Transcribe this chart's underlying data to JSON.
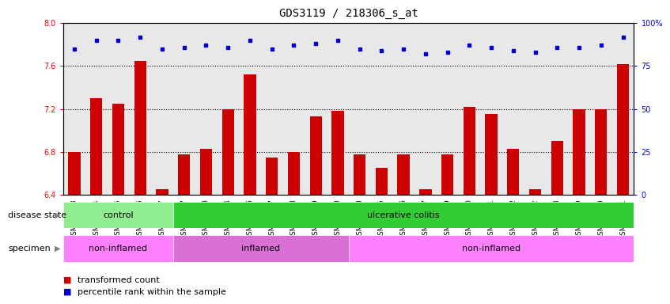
{
  "title": "GDS3119 / 218306_s_at",
  "samples": [
    "GSM240023",
    "GSM240024",
    "GSM240025",
    "GSM240026",
    "GSM240027",
    "GSM239617",
    "GSM239618",
    "GSM239714",
    "GSM239716",
    "GSM239717",
    "GSM239718",
    "GSM239719",
    "GSM239720",
    "GSM239723",
    "GSM239725",
    "GSM239726",
    "GSM239727",
    "GSM239729",
    "GSM239730",
    "GSM239731",
    "GSM239732",
    "GSM240022",
    "GSM240028",
    "GSM240029",
    "GSM240030",
    "GSM240031"
  ],
  "bar_values": [
    6.8,
    7.3,
    7.25,
    7.65,
    6.45,
    6.78,
    6.83,
    7.2,
    7.52,
    6.75,
    6.8,
    7.13,
    7.18,
    6.78,
    6.65,
    6.78,
    6.45,
    6.78,
    7.22,
    7.15,
    6.83,
    6.45,
    6.9,
    7.2,
    7.2,
    7.62
  ],
  "dot_values": [
    85,
    90,
    90,
    92,
    85,
    86,
    87,
    86,
    90,
    85,
    87,
    88,
    90,
    85,
    84,
    85,
    82,
    83,
    87,
    86,
    84,
    83,
    86,
    86,
    87,
    92
  ],
  "bar_color": "#CC0000",
  "dot_color": "#0000CC",
  "ymin": 6.4,
  "ymax": 8.0,
  "ylim_left": [
    6.4,
    8.0
  ],
  "ylim_right": [
    0,
    100
  ],
  "yticks_left": [
    6.4,
    6.8,
    7.2,
    7.6,
    8.0
  ],
  "yticks_right": [
    0,
    25,
    50,
    75,
    100
  ],
  "ytick_labels_right": [
    "0",
    "25",
    "50",
    "75",
    "100%"
  ],
  "hlines": [
    6.8,
    7.2,
    7.6
  ],
  "control_n": 5,
  "inflamed_n": 8,
  "uc_n": 21,
  "ni2_n": 13,
  "color_control": "#90EE90",
  "color_uc": "#32CD32",
  "color_ni": "#FF80FF",
  "color_inflamed": "#DA70D6",
  "legend_items": [
    "transformed count",
    "percentile rank within the sample"
  ],
  "legend_colors": [
    "#CC0000",
    "#0000CC"
  ],
  "plot_bg_color": "#E8E8E8",
  "title_fontsize": 10,
  "tick_fontsize": 7,
  "bar_fontsize": 6
}
